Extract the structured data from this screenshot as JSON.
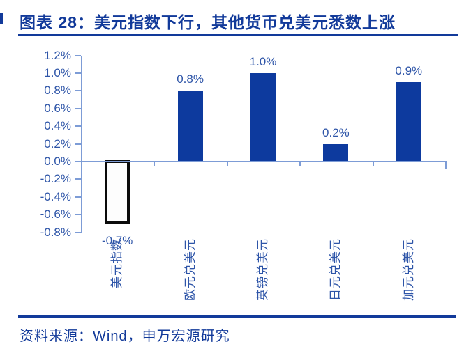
{
  "header": {
    "title": "图表 28：美元指数下行，其他货币兑美元悉数上涨"
  },
  "footer": {
    "source": "资料来源：Wind，申万宏源研究"
  },
  "colors": {
    "accent_navy": "#123a9a",
    "bar_blue": "#0d3a9e",
    "label_blue": "#2e55a8",
    "axis_blue": "#7d9cd6",
    "hollow_bar_border": "#0b0b0b",
    "hollow_bar_fill": "#fdfdfd",
    "background": "#ffffff"
  },
  "chart_data": {
    "type": "bar",
    "title": "美元指数下行，其他货币兑美元悉数上涨",
    "categories": [
      "美元指数",
      "欧元兑美元",
      "英镑兑美元",
      "日元兑美元",
      "加元兑美元"
    ],
    "values": [
      -0.7,
      0.8,
      1.0,
      0.2,
      0.9
    ],
    "data_labels": [
      "-0.7%",
      "0.8%",
      "1.0%",
      "0.2%",
      "0.9%"
    ],
    "bar_styles": [
      "hollow",
      "solid",
      "solid",
      "solid",
      "solid"
    ],
    "y_ticks": [
      "1.2%",
      "1.0%",
      "0.8%",
      "0.6%",
      "0.4%",
      "0.2%",
      "0.0%",
      "-0.2%",
      "-0.4%",
      "-0.6%",
      "-0.8%"
    ],
    "y_tick_values": [
      1.2,
      1.0,
      0.8,
      0.6,
      0.4,
      0.2,
      0.0,
      -0.2,
      -0.4,
      -0.6,
      -0.8
    ],
    "ylim": [
      -0.8,
      1.2
    ],
    "xlabel": "",
    "ylabel": "",
    "unit": "%",
    "grid": false,
    "legend": false
  }
}
